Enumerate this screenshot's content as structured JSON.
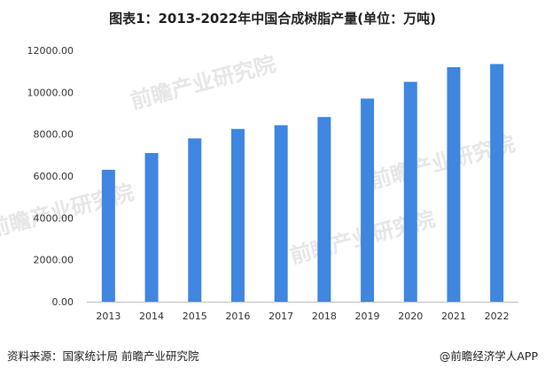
{
  "title": "图表1：2013-2022年中国合成树脂产量(单位：万吨)",
  "footer": {
    "source": "资料来源：国家统计局 前瞻产业研究院",
    "credit": "@前瞻经济学人APP"
  },
  "watermark": {
    "text": "前瞻产业研究院"
  },
  "colors": {
    "bar": "#3f86e0",
    "axis": "#bfbfbf",
    "text": "#333333"
  },
  "chart_data": {
    "type": "bar",
    "title": "图表1：2013-2022年中国合成树脂产量(单位：万吨)",
    "categories": [
      "2013",
      "2014",
      "2015",
      "2016",
      "2017",
      "2018",
      "2019",
      "2020",
      "2021",
      "2022"
    ],
    "values": [
      6300,
      7100,
      7800,
      8250,
      8430,
      8820,
      9700,
      10500,
      11200,
      11350
    ],
    "ylim": [
      0,
      12000
    ],
    "yticks": [
      "0.00",
      "2000.00",
      "4000.00",
      "6000.00",
      "8000.00",
      "10000.00",
      "12000.00"
    ],
    "xlabel": "",
    "ylabel": "",
    "grid": false,
    "legend": "none"
  }
}
